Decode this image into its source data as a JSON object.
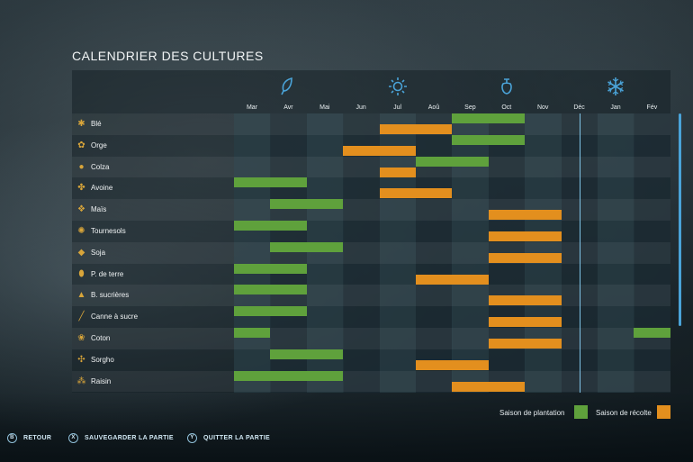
{
  "title": "CALENDRIER DES CULTURES",
  "months": [
    "Mar",
    "Avr",
    "Mai",
    "Jun",
    "Jul",
    "Aoû",
    "Sep",
    "Oct",
    "Nov",
    "Déc",
    "Jan",
    "Fév"
  ],
  "seasons": [
    {
      "icon": "spring-leaf-icon"
    },
    {
      "icon": "summer-sun-icon"
    },
    {
      "icon": "autumn-fruit-icon"
    },
    {
      "icon": "winter-snowflake-icon"
    }
  ],
  "crops": [
    {
      "name": "Blé",
      "icon": "wheat-icon",
      "plant": [
        [
          6,
          8
        ]
      ],
      "harvest": [
        [
          4,
          6
        ]
      ]
    },
    {
      "name": "Orge",
      "icon": "barley-icon",
      "plant": [
        [
          6,
          8
        ]
      ],
      "harvest": [
        [
          3,
          5
        ]
      ]
    },
    {
      "name": "Colza",
      "icon": "canola-icon",
      "plant": [
        [
          5,
          7
        ]
      ],
      "harvest": [
        [
          4,
          5
        ]
      ]
    },
    {
      "name": "Avoine",
      "icon": "oat-icon",
      "plant": [
        [
          0,
          2
        ]
      ],
      "harvest": [
        [
          4,
          6
        ]
      ]
    },
    {
      "name": "Maïs",
      "icon": "corn-icon",
      "plant": [
        [
          1,
          3
        ]
      ],
      "harvest": [
        [
          7,
          9
        ]
      ]
    },
    {
      "name": "Tournesols",
      "icon": "sunflower-icon",
      "plant": [
        [
          0,
          2
        ]
      ],
      "harvest": [
        [
          7,
          9
        ]
      ]
    },
    {
      "name": "Soja",
      "icon": "soybean-icon",
      "plant": [
        [
          1,
          3
        ]
      ],
      "harvest": [
        [
          7,
          9
        ]
      ]
    },
    {
      "name": "P. de terre",
      "icon": "potato-icon",
      "plant": [
        [
          0,
          2
        ]
      ],
      "harvest": [
        [
          5,
          7
        ]
      ]
    },
    {
      "name": "B. sucrières",
      "icon": "sugarbeet-icon",
      "plant": [
        [
          0,
          2
        ]
      ],
      "harvest": [
        [
          7,
          9
        ]
      ]
    },
    {
      "name": "Canne à sucre",
      "icon": "sugarcane-icon",
      "plant": [
        [
          0,
          2
        ]
      ],
      "harvest": [
        [
          7,
          9
        ]
      ]
    },
    {
      "name": "Coton",
      "icon": "cotton-icon",
      "plant": [
        [
          0,
          1
        ],
        [
          11,
          12
        ]
      ],
      "harvest": [
        [
          7,
          9
        ]
      ]
    },
    {
      "name": "Sorgho",
      "icon": "sorghum-icon",
      "plant": [
        [
          1,
          3
        ]
      ],
      "harvest": [
        [
          5,
          7
        ]
      ]
    },
    {
      "name": "Raisin",
      "icon": "grape-icon",
      "plant": [
        [
          0,
          3
        ]
      ],
      "harvest": [
        [
          6,
          8
        ]
      ]
    }
  ],
  "legend": {
    "plant_label": "Saison de plantation",
    "harvest_label": "Saison de récolte",
    "plant_color": "#5fa13c",
    "harvest_color": "#e38f1e"
  },
  "footer": [
    {
      "key": "B",
      "label": "RETOUR"
    },
    {
      "key": "X",
      "label": "SAUVEGARDER LA PARTIE"
    },
    {
      "key": "Y",
      "label": "QUITTER LA PARTIE"
    }
  ]
}
